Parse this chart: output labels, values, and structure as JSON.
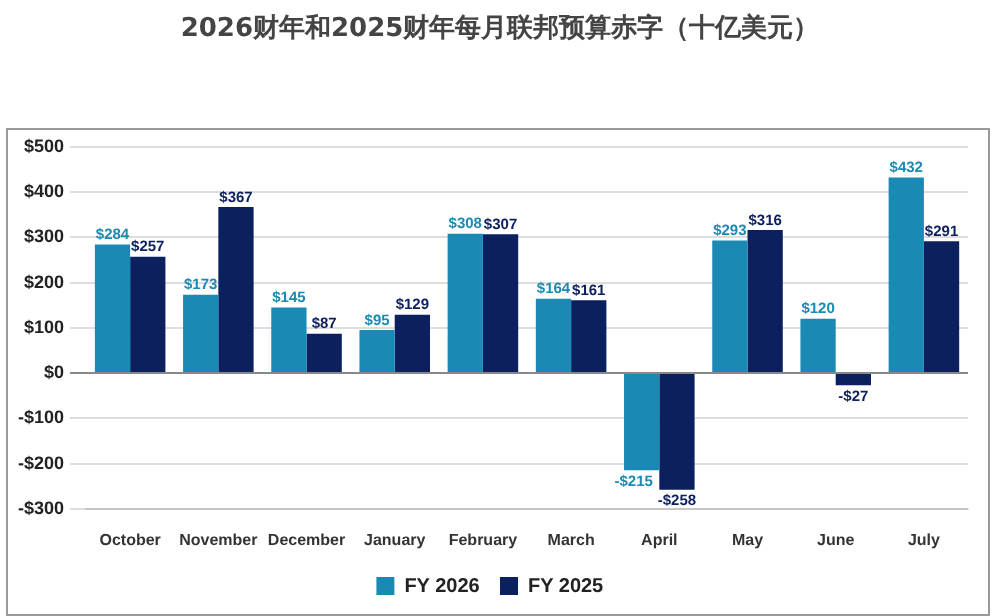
{
  "chart_data": {
    "type": "bar",
    "title": "2026财年和2025财年每月联邦预算赤字（十亿美元）",
    "categories": [
      "October",
      "November",
      "December",
      "January",
      "February",
      "March",
      "April",
      "May",
      "June",
      "July"
    ],
    "series": [
      {
        "name": "FY 2026",
        "color": "#1a8ab5",
        "values": [
          284,
          173,
          145,
          95,
          308,
          164,
          -215,
          293,
          120,
          432
        ],
        "value_labels": [
          "$284",
          "$173",
          "$145",
          "$95",
          "$308",
          "$164",
          "-$215",
          "$293",
          "$120",
          "$432"
        ]
      },
      {
        "name": "FY 2025",
        "color": "#0c1f5e",
        "values": [
          257,
          367,
          87,
          129,
          307,
          161,
          -258,
          316,
          -27,
          291
        ],
        "value_labels": [
          "$257",
          "$367",
          "$87",
          "$129",
          "$307",
          "$161",
          "-$258",
          "$316",
          "-$27",
          "$291"
        ]
      }
    ],
    "ylim": [
      -300,
      500
    ],
    "yticks": [
      {
        "value": -300,
        "label": "-$300"
      },
      {
        "value": -200,
        "label": "-$200"
      },
      {
        "value": -100,
        "label": "-$100"
      },
      {
        "value": 0,
        "label": "$0"
      },
      {
        "value": 100,
        "label": "$100"
      },
      {
        "value": 200,
        "label": "$200"
      },
      {
        "value": 300,
        "label": "$300"
      },
      {
        "value": 400,
        "label": "$400"
      },
      {
        "value": 500,
        "label": "$500"
      }
    ],
    "grid": "y",
    "legend": "bottom"
  }
}
